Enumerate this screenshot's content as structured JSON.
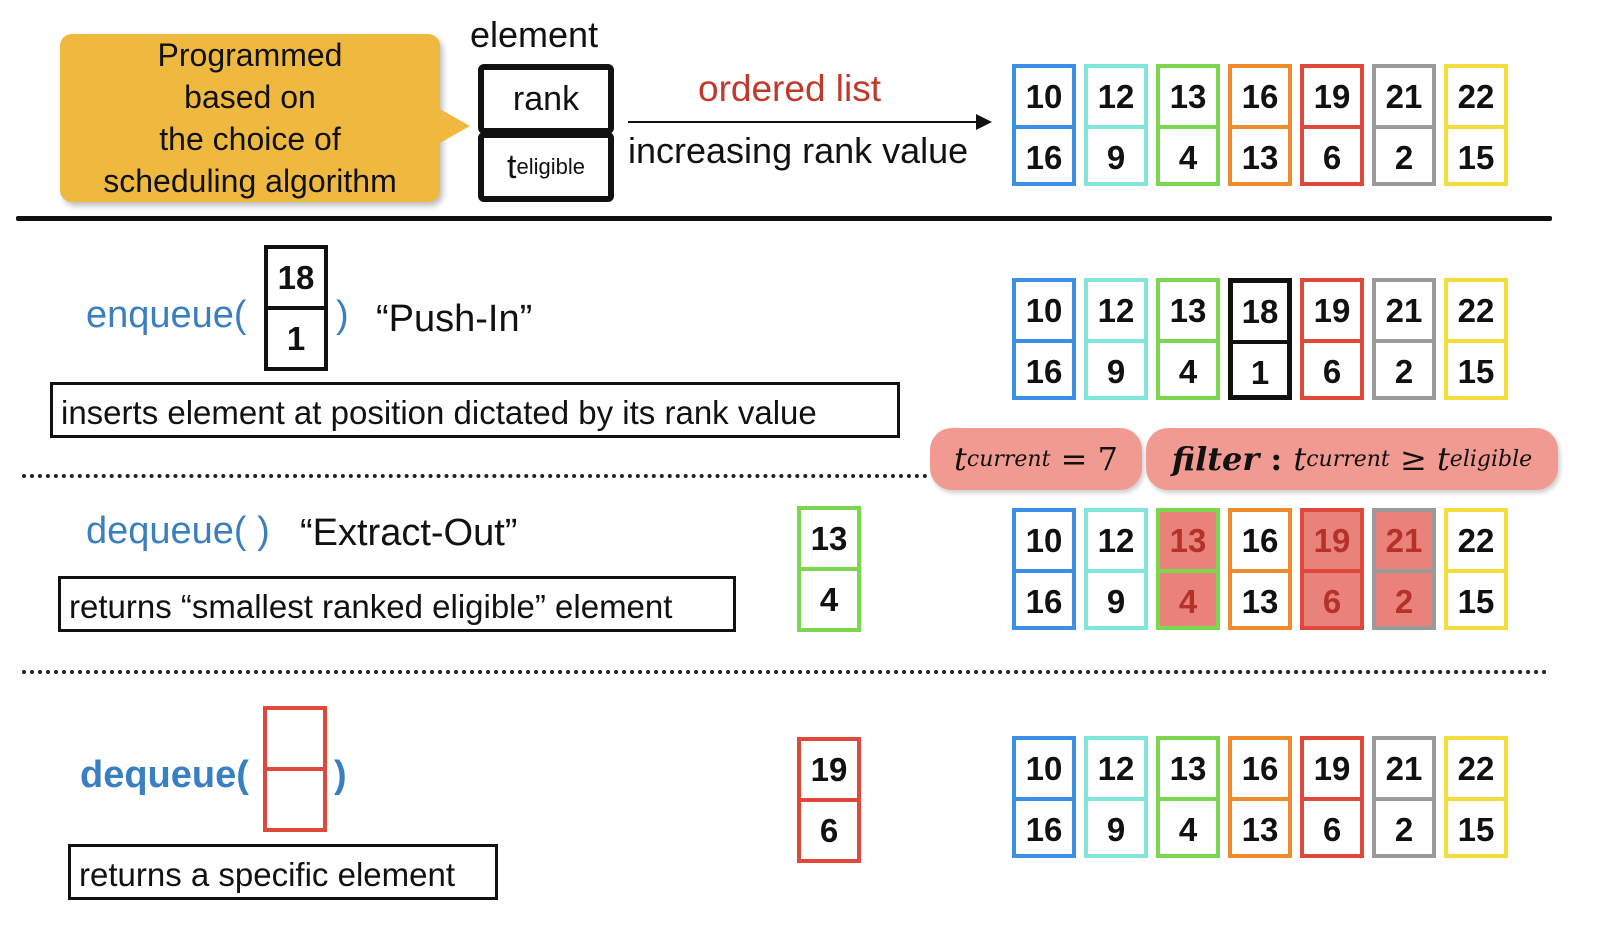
{
  "colors": {
    "blue": "#3b8fe6",
    "cyan": "#7fe6d9",
    "green": "#7dd64f",
    "orange": "#f08c2e",
    "red": "#e1483c",
    "gray": "#9a9a9a",
    "yellow": "#f3dc3c",
    "black": "#111111"
  },
  "callout": {
    "lines": [
      "Programmed",
      "based on",
      "the choice of",
      "scheduling algorithm"
    ]
  },
  "legend": {
    "title": "element",
    "rank_label": "rank",
    "t_label": "t",
    "t_sub": "eligible",
    "ordered_list": "ordered list",
    "increasing": "increasing rank value"
  },
  "lists": {
    "top": [
      {
        "rank": "10",
        "t": "16",
        "color": "blue"
      },
      {
        "rank": "12",
        "t": "9",
        "color": "cyan"
      },
      {
        "rank": "13",
        "t": "4",
        "color": "green"
      },
      {
        "rank": "16",
        "t": "13",
        "color": "orange"
      },
      {
        "rank": "19",
        "t": "6",
        "color": "red"
      },
      {
        "rank": "21",
        "t": "2",
        "color": "gray"
      },
      {
        "rank": "22",
        "t": "15",
        "color": "yellow"
      }
    ],
    "enqueue": [
      {
        "rank": "10",
        "t": "16",
        "color": "blue"
      },
      {
        "rank": "12",
        "t": "9",
        "color": "cyan"
      },
      {
        "rank": "13",
        "t": "4",
        "color": "green"
      },
      {
        "rank": "18",
        "t": "1",
        "color": "black"
      },
      {
        "rank": "19",
        "t": "6",
        "color": "red"
      },
      {
        "rank": "21",
        "t": "2",
        "color": "gray"
      },
      {
        "rank": "22",
        "t": "15",
        "color": "yellow"
      }
    ],
    "dequeue": [
      {
        "rank": "10",
        "t": "16",
        "color": "blue"
      },
      {
        "rank": "12",
        "t": "9",
        "color": "cyan"
      },
      {
        "rank": "13",
        "t": "4",
        "color": "green",
        "highlight": true
      },
      {
        "rank": "16",
        "t": "13",
        "color": "orange"
      },
      {
        "rank": "19",
        "t": "6",
        "color": "red",
        "highlight": true
      },
      {
        "rank": "21",
        "t": "2",
        "color": "gray",
        "highlight": true
      },
      {
        "rank": "22",
        "t": "15",
        "color": "yellow"
      }
    ],
    "dequeue_specific": [
      {
        "rank": "10",
        "t": "16",
        "color": "blue"
      },
      {
        "rank": "12",
        "t": "9",
        "color": "cyan"
      },
      {
        "rank": "13",
        "t": "4",
        "color": "green"
      },
      {
        "rank": "16",
        "t": "13",
        "color": "orange"
      },
      {
        "rank": "19",
        "t": "6",
        "color": "red"
      },
      {
        "rank": "21",
        "t": "2",
        "color": "gray"
      },
      {
        "rank": "22",
        "t": "15",
        "color": "yellow"
      }
    ]
  },
  "enqueue": {
    "name": "enqueue(",
    "close": ")",
    "element_rank": "18",
    "element_t": "1",
    "quote": "“Push-In”",
    "desc": "inserts element at position dictated by its rank value"
  },
  "pills": {
    "current_t": "t",
    "current_sub": "current",
    "current_eq": " = 7",
    "filter_word": "filter",
    "filter_colon": " : ",
    "filter_t1": "t",
    "filter_sub1": "current",
    "filter_ge": " ≥ ",
    "filter_t2": "t",
    "filter_sub2": "eligible"
  },
  "dequeue": {
    "name": "dequeue( )",
    "quote": "“Extract-Out”",
    "desc": "returns “smallest ranked eligible” element",
    "result_rank": "13",
    "result_t": "4"
  },
  "dequeue_specific": {
    "name": "dequeue(",
    "close": ")",
    "desc": "returns a specific element",
    "result_rank": "19",
    "result_t": "6"
  }
}
